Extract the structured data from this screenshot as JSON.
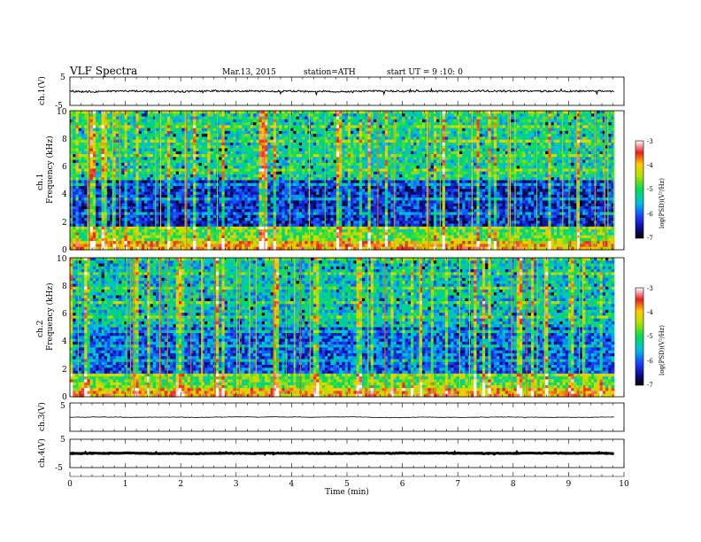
{
  "header": {
    "title": "VLF  Spectra",
    "date": "Mar.13, 2015",
    "station": "station=ATH",
    "start": "start  UT  =   9 :10: 0"
  },
  "chart_data": [
    {
      "id": "ch1-voltage",
      "type": "line",
      "ylabel": "ch.1(V)",
      "ylim": [
        -5,
        5
      ],
      "y_ticks": [
        "5",
        "-5"
      ],
      "xlim": [
        0,
        10
      ],
      "data_end_min": 9.82,
      "baseline": 0,
      "noise_amplitude": 0.6
    },
    {
      "id": "ch1-spectrogram",
      "type": "heatmap",
      "ylabel_line1": "ch.1",
      "ylabel_line2": "Frequency  (kHz)",
      "ylim": [
        0,
        10
      ],
      "y_ticks": [
        "0",
        "2",
        "4",
        "6",
        "8",
        "10"
      ],
      "xlim": [
        0,
        10
      ],
      "colorbar": {
        "label": "log(PSD)(V²/Hz)",
        "range": [
          -7,
          -3
        ],
        "ticks": [
          "-3",
          "-4",
          "-5",
          "-6",
          "-7"
        ]
      }
    },
    {
      "id": "ch2-spectrogram",
      "type": "heatmap",
      "ylabel_line1": "ch.2",
      "ylabel_line2": "Frequency  (kHz)",
      "ylim": [
        0,
        10
      ],
      "y_ticks": [
        "0",
        "2",
        "4",
        "6",
        "8",
        "10"
      ],
      "xlim": [
        0,
        10
      ],
      "colorbar": {
        "label": "log(PSD)(V²/Hz)",
        "range": [
          -7,
          -3
        ],
        "ticks": [
          "-3",
          "-4",
          "-5",
          "-6",
          "-7"
        ]
      }
    },
    {
      "id": "ch3-voltage",
      "type": "line",
      "ylabel": "ch.3(V)",
      "ylim": [
        -5,
        5
      ],
      "y_ticks": [
        "5"
      ],
      "xlim": [
        0,
        10
      ],
      "data_end_min": 9.82,
      "baseline": 0,
      "noise_amplitude": 0.15
    },
    {
      "id": "ch4-voltage",
      "type": "line",
      "ylabel": "ch.4(V)",
      "ylim": [
        -5,
        5
      ],
      "y_ticks": [
        "5",
        "-5"
      ],
      "xlim": [
        0,
        10
      ],
      "data_end_min": 9.82,
      "baseline": 0,
      "noise_amplitude": 0.2
    }
  ],
  "x_axis": {
    "label": "Time  (min)",
    "ticks": [
      "0",
      "1",
      "2",
      "3",
      "4",
      "5",
      "6",
      "7",
      "8",
      "9",
      "10"
    ]
  }
}
